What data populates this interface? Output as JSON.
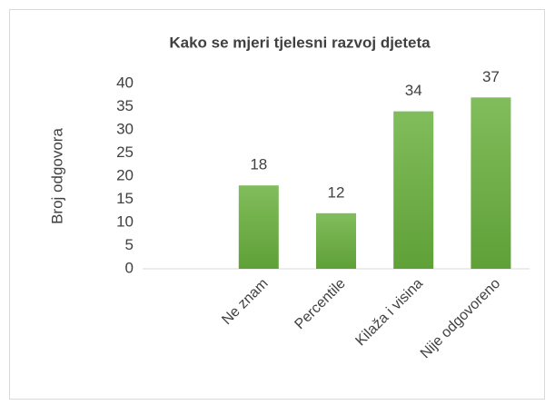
{
  "chart_data": {
    "type": "bar",
    "title": "Kako se mjeri tjelesni razvoj djeteta",
    "y_label": "Broj odgovora",
    "categories": [
      null,
      "Ne znam",
      "Percentile",
      "Kilaža i visina",
      "Nije odgovoreno"
    ],
    "values": [
      null,
      18,
      12,
      34,
      37
    ],
    "color": "#70ad47",
    "ylim": [
      0,
      40
    ],
    "yticks": [
      0,
      5,
      10,
      15,
      20,
      25,
      30,
      35,
      40
    ],
    "grid": false
  }
}
